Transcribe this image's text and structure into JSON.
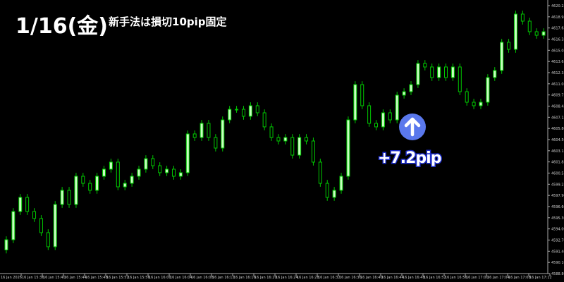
{
  "title": {
    "date": "1/16(金)",
    "subtitle": "新手法は損切10pip固定"
  },
  "annotation": {
    "icon": "arrow-up-icon",
    "result": "+7.2pip",
    "circle_color": "#5a78ec",
    "outline_color": "#1c2cc8"
  },
  "chart_data": {
    "type": "candlestick",
    "colors": {
      "background": "#000000",
      "up_body": "#c8ffc0",
      "down_body": "#000000",
      "wick": "#00c800",
      "axis": "#aaaaaa"
    },
    "ylim": [
      4588.8,
      4620.25
    ],
    "y_ticks": [
      "4620.25",
      "4618.95",
      "4617.65",
      "4616.35",
      "4615.05",
      "4613.65",
      "4612.35",
      "4611.05",
      "4609.75",
      "4608.45",
      "4607.15",
      "4605.80",
      "4604.50",
      "4603.15",
      "4601.85",
      "4600.55",
      "4599.25",
      "4597.90",
      "4596.60",
      "4595.30",
      "4594.00",
      "4592.70",
      "4591.40",
      "4590.10",
      "4588.80"
    ],
    "x_ticks": [
      "16 Jan 2026",
      "16 Jan 15:36",
      "16 Jan 15:40",
      "16 Jan 15:44",
      "16 Jan 15:48",
      "16 Jan 15:52",
      "16 Jan 15:56",
      "16 Jan 16:00",
      "16 Jan 16:04",
      "16 Jan 16:08",
      "16 Jan 16:12",
      "16 Jan 16:16",
      "16 Jan 16:20",
      "16 Jan 16:24",
      "16 Jan 16:28",
      "16 Jan 16:32",
      "16 Jan 16:36",
      "16 Jan 16:40",
      "16 Jan 16:44",
      "16 Jan 16:48",
      "16 Jan 16:52",
      "16 Jan 16:56",
      "16 Jan 17:00",
      "16 Jan 17:04",
      "16 Jan 17:08",
      "16 Jan 17:12"
    ],
    "close": [
      4592.77,
      4596.08,
      4597.74,
      4596.08,
      4595.26,
      4593.6,
      4591.95,
      4596.91,
      4598.57,
      4596.91,
      4600.22,
      4599.39,
      4598.57,
      4600.22,
      4601.05,
      4601.88,
      4598.98,
      4599.39,
      4600.22,
      4601.05,
      4602.29,
      4601.46,
      4600.64,
      4601.05,
      4600.22,
      4600.64,
      4605.19,
      4604.77,
      4606.43,
      4604.77,
      4603.53,
      4606.84,
      4608.08,
      4608.08,
      4607.26,
      4608.5,
      4607.67,
      4606.02,
      4604.77,
      4604.36,
      4604.77,
      4602.7,
      4604.77,
      4604.36,
      4601.88,
      4599.39,
      4597.74,
      4598.57,
      4600.22,
      4606.84,
      4610.98,
      4608.5,
      4606.43,
      4606.02,
      4607.67,
      4606.84,
      4609.74,
      4610.15,
      4610.98,
      4613.46,
      4613.05,
      4611.81,
      4613.05,
      4611.81,
      4613.05,
      4610.15,
      4608.91,
      4608.5,
      4608.91,
      4611.81,
      4612.64,
      4615.95,
      4615.12,
      4619.26,
      4618.43,
      4617.19,
      4616.77,
      4617.19
    ]
  }
}
